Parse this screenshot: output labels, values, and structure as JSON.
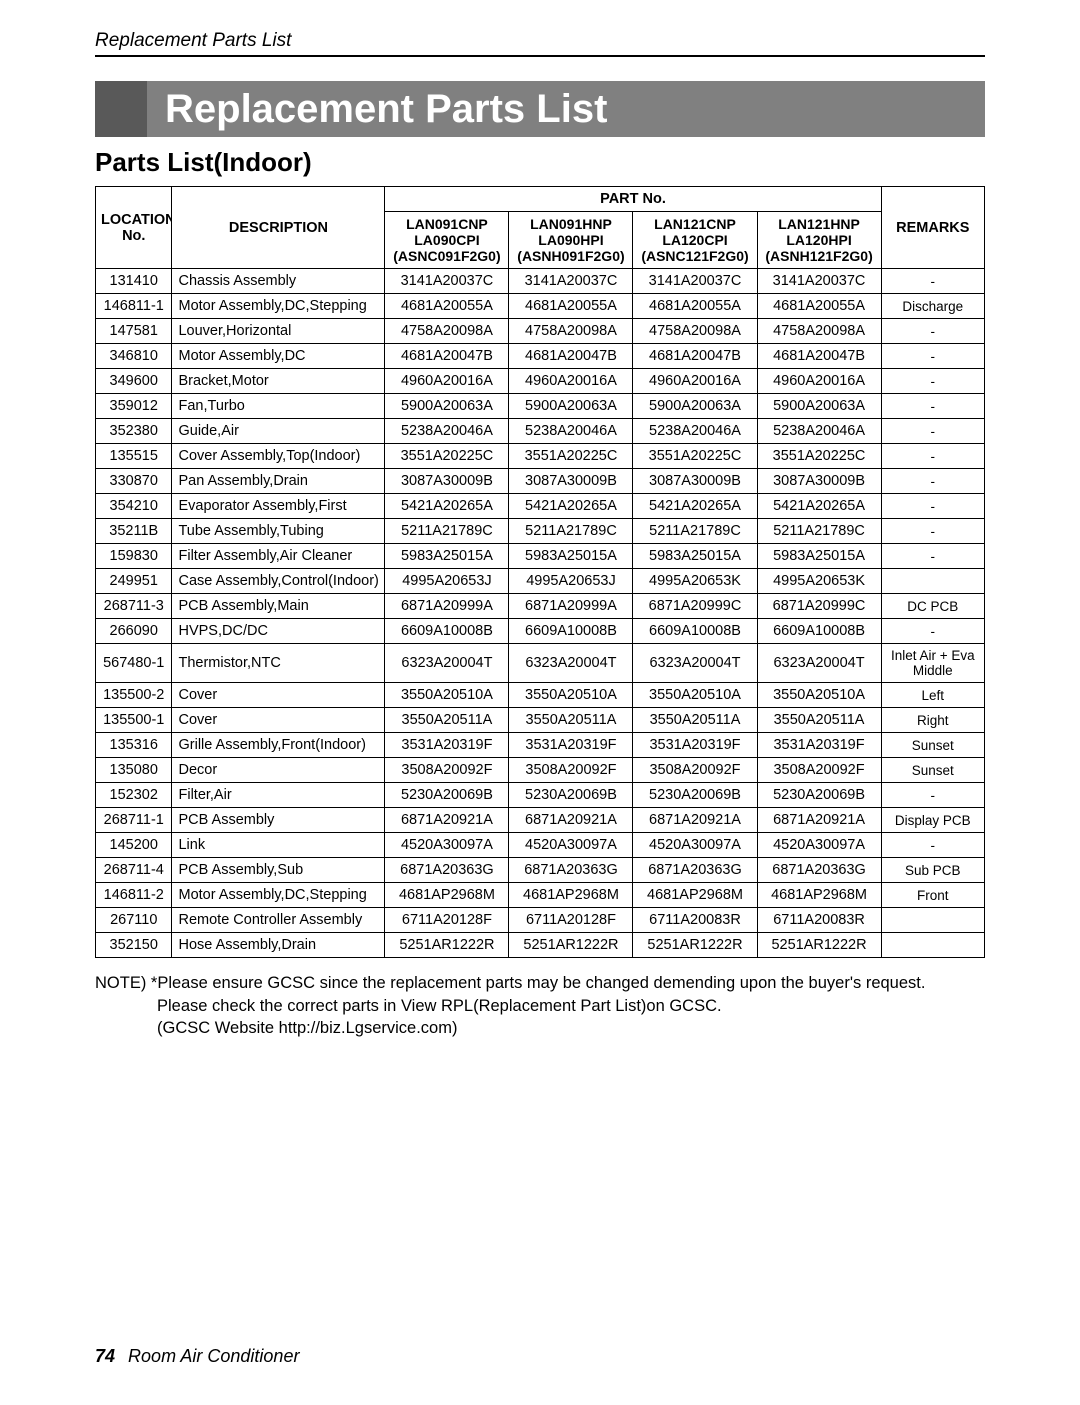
{
  "header": "Replacement Parts List",
  "title": "Replacement Parts List",
  "subtitle": "Parts List(Indoor)",
  "table": {
    "head": {
      "location_label": "LOCATION",
      "no_label": "No.",
      "description": "DESCRIPTION",
      "part_no": "PART No.",
      "remarks": "REMARKS",
      "models": [
        {
          "l1": "LAN091CNP",
          "l2": "LA090CPI",
          "l3": "(ASNC091F2G0)"
        },
        {
          "l1": "LAN091HNP",
          "l2": "LA090HPI",
          "l3": "(ASNH091F2G0)"
        },
        {
          "l1": "LAN121CNP",
          "l2": "LA120CPI",
          "l3": "(ASNC121F2G0)"
        },
        {
          "l1": "LAN121HNP",
          "l2": "LA120HPI",
          "l3": "(ASNH121F2G0)"
        }
      ]
    },
    "rows": [
      {
        "loc": "131410",
        "desc": "Chassis Assembly",
        "p": [
          "3141A20037C",
          "3141A20037C",
          "3141A20037C",
          "3141A20037C"
        ],
        "rem": "-"
      },
      {
        "loc": "146811-1",
        "desc": "Motor Assembly,DC,Stepping",
        "p": [
          "4681A20055A",
          "4681A20055A",
          "4681A20055A",
          "4681A20055A"
        ],
        "rem": "Discharge"
      },
      {
        "loc": "147581",
        "desc": "Louver,Horizontal",
        "p": [
          "4758A20098A",
          "4758A20098A",
          "4758A20098A",
          "4758A20098A"
        ],
        "rem": "-"
      },
      {
        "loc": "346810",
        "desc": "Motor Assembly,DC",
        "p": [
          "4681A20047B",
          "4681A20047B",
          "4681A20047B",
          "4681A20047B"
        ],
        "rem": "-"
      },
      {
        "loc": "349600",
        "desc": "Bracket,Motor",
        "p": [
          "4960A20016A",
          "4960A20016A",
          "4960A20016A",
          "4960A20016A"
        ],
        "rem": "-"
      },
      {
        "loc": "359012",
        "desc": "Fan,Turbo",
        "p": [
          "5900A20063A",
          "5900A20063A",
          "5900A20063A",
          "5900A20063A"
        ],
        "rem": "-"
      },
      {
        "loc": "352380",
        "desc": "Guide,Air",
        "p": [
          "5238A20046A",
          "5238A20046A",
          "5238A20046A",
          "5238A20046A"
        ],
        "rem": "-"
      },
      {
        "loc": "135515",
        "desc": "Cover Assembly,Top(Indoor)",
        "p": [
          "3551A20225C",
          "3551A20225C",
          "3551A20225C",
          "3551A20225C"
        ],
        "rem": "-"
      },
      {
        "loc": "330870",
        "desc": "Pan Assembly,Drain",
        "p": [
          "3087A30009B",
          "3087A30009B",
          "3087A30009B",
          "3087A30009B"
        ],
        "rem": "-"
      },
      {
        "loc": "354210",
        "desc": "Evaporator Assembly,First",
        "p": [
          "5421A20265A",
          "5421A20265A",
          "5421A20265A",
          "5421A20265A"
        ],
        "rem": "-"
      },
      {
        "loc": "35211B",
        "desc": "Tube Assembly,Tubing",
        "p": [
          "5211A21789C",
          "5211A21789C",
          "5211A21789C",
          "5211A21789C"
        ],
        "rem": "-"
      },
      {
        "loc": "159830",
        "desc": "Filter Assembly,Air Cleaner",
        "p": [
          "5983A25015A",
          "5983A25015A",
          "5983A25015A",
          "5983A25015A"
        ],
        "rem": "-"
      },
      {
        "loc": "249951",
        "desc": "Case Assembly,Control(Indoor)",
        "p": [
          "4995A20653J",
          "4995A20653J",
          "4995A20653K",
          "4995A20653K"
        ],
        "rem": ""
      },
      {
        "loc": "268711-3",
        "desc": "PCB Assembly,Main",
        "p": [
          "6871A20999A",
          "6871A20999A",
          "6871A20999C",
          "6871A20999C"
        ],
        "rem": "DC PCB"
      },
      {
        "loc": "266090",
        "desc": "HVPS,DC/DC",
        "p": [
          "6609A10008B",
          "6609A10008B",
          "6609A10008B",
          "6609A10008B"
        ],
        "rem": "-"
      },
      {
        "loc": "567480-1",
        "desc": "Thermistor,NTC",
        "p": [
          "6323A20004T",
          "6323A20004T",
          "6323A20004T",
          "6323A20004T"
        ],
        "rem": "Inlet Air + Eva Middle"
      },
      {
        "loc": "135500-2",
        "desc": "Cover",
        "p": [
          "3550A20510A",
          "3550A20510A",
          "3550A20510A",
          "3550A20510A"
        ],
        "rem": "Left"
      },
      {
        "loc": "135500-1",
        "desc": "Cover",
        "p": [
          "3550A20511A",
          "3550A20511A",
          "3550A20511A",
          "3550A20511A"
        ],
        "rem": "Right"
      },
      {
        "loc": "135316",
        "desc": "Grille Assembly,Front(Indoor)",
        "p": [
          "3531A20319F",
          "3531A20319F",
          "3531A20319F",
          "3531A20319F"
        ],
        "rem": "Sunset"
      },
      {
        "loc": "135080",
        "desc": "Decor",
        "p": [
          "3508A20092F",
          "3508A20092F",
          "3508A20092F",
          "3508A20092F"
        ],
        "rem": "Sunset"
      },
      {
        "loc": "152302",
        "desc": "Filter,Air",
        "p": [
          "5230A20069B",
          "5230A20069B",
          "5230A20069B",
          "5230A20069B"
        ],
        "rem": "-"
      },
      {
        "loc": "268711-1",
        "desc": "PCB Assembly",
        "p": [
          "6871A20921A",
          "6871A20921A",
          "6871A20921A",
          "6871A20921A"
        ],
        "rem": "Display PCB"
      },
      {
        "loc": "145200",
        "desc": "Link",
        "p": [
          "4520A30097A",
          "4520A30097A",
          "4520A30097A",
          "4520A30097A"
        ],
        "rem": "-"
      },
      {
        "loc": "268711-4",
        "desc": "PCB Assembly,Sub",
        "p": [
          "6871A20363G",
          "6871A20363G",
          "6871A20363G",
          "6871A20363G"
        ],
        "rem": "Sub PCB"
      },
      {
        "loc": "146811-2",
        "desc": "Motor Assembly,DC,Stepping",
        "p": [
          "4681AP2968M",
          "4681AP2968M",
          "4681AP2968M",
          "4681AP2968M"
        ],
        "rem": "Front"
      },
      {
        "loc": "267110",
        "desc": "Remote Controller Assembly",
        "p": [
          "6711A20128F",
          "6711A20128F",
          "6711A20083R",
          "6711A20083R"
        ],
        "rem": ""
      },
      {
        "loc": "352150",
        "desc": "Hose Assembly,Drain",
        "p": [
          "5251AR1222R",
          "5251AR1222R",
          "5251AR1222R",
          "5251AR1222R"
        ],
        "rem": ""
      }
    ]
  },
  "note": {
    "line1": "NOTE) *Please ensure GCSC since the replacement parts may be changed demending upon the buyer's request.",
    "line2": "Please check the correct parts in View RPL(Replacement Part List)on GCSC.",
    "line3": "(GCSC Website http://biz.Lgservice.com)"
  },
  "footer": {
    "page_num": "74",
    "footer_text": "Room Air Conditioner"
  }
}
